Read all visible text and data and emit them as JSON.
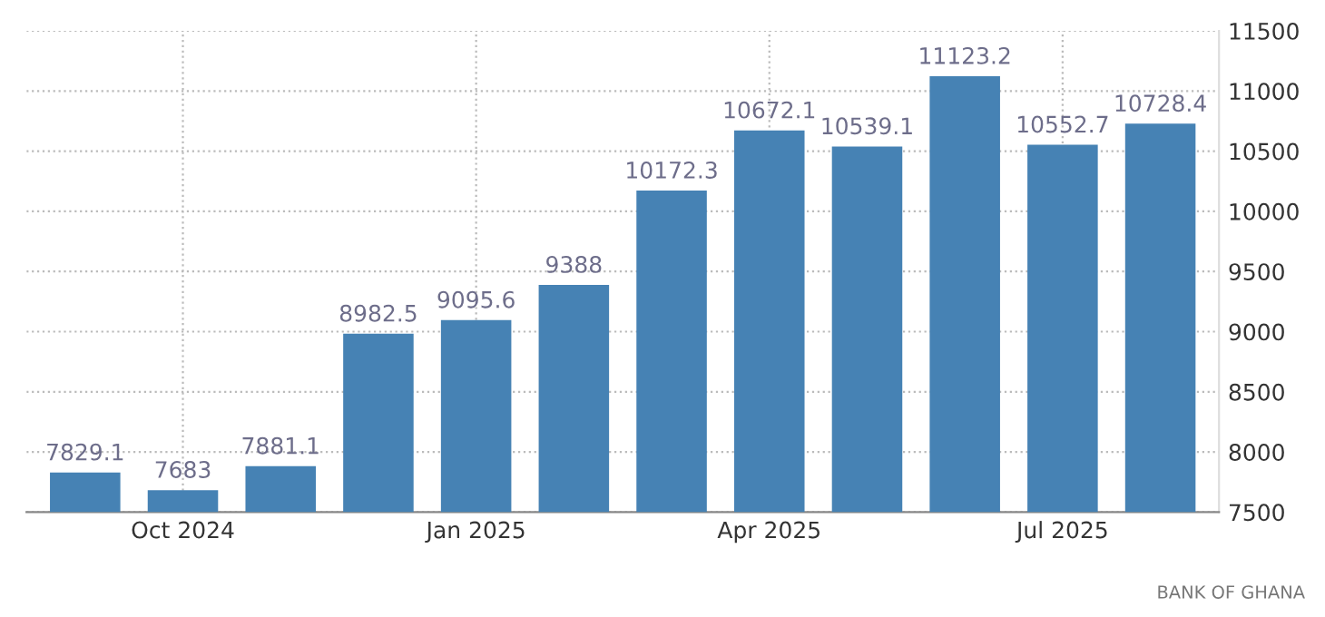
{
  "chart_data": {
    "type": "bar",
    "categories": [
      null,
      "Oct 2024",
      null,
      null,
      "Jan 2025",
      null,
      null,
      "Apr 2025",
      null,
      null,
      "Jul 2025",
      null
    ],
    "values": [
      7829.1,
      7683,
      7881.1,
      8982.5,
      9095.6,
      9388,
      10172.3,
      10672.1,
      10539.1,
      11123.2,
      10552.7,
      10728.4
    ],
    "color": "#4682b4",
    "data_labels": true,
    "ylim": [
      7500,
      11500
    ],
    "yticks": [
      7500,
      8000,
      8500,
      9000,
      9500,
      10000,
      10500,
      11000,
      11500
    ],
    "grid": true,
    "annotations": [
      "BANK OF GHANA"
    ]
  }
}
